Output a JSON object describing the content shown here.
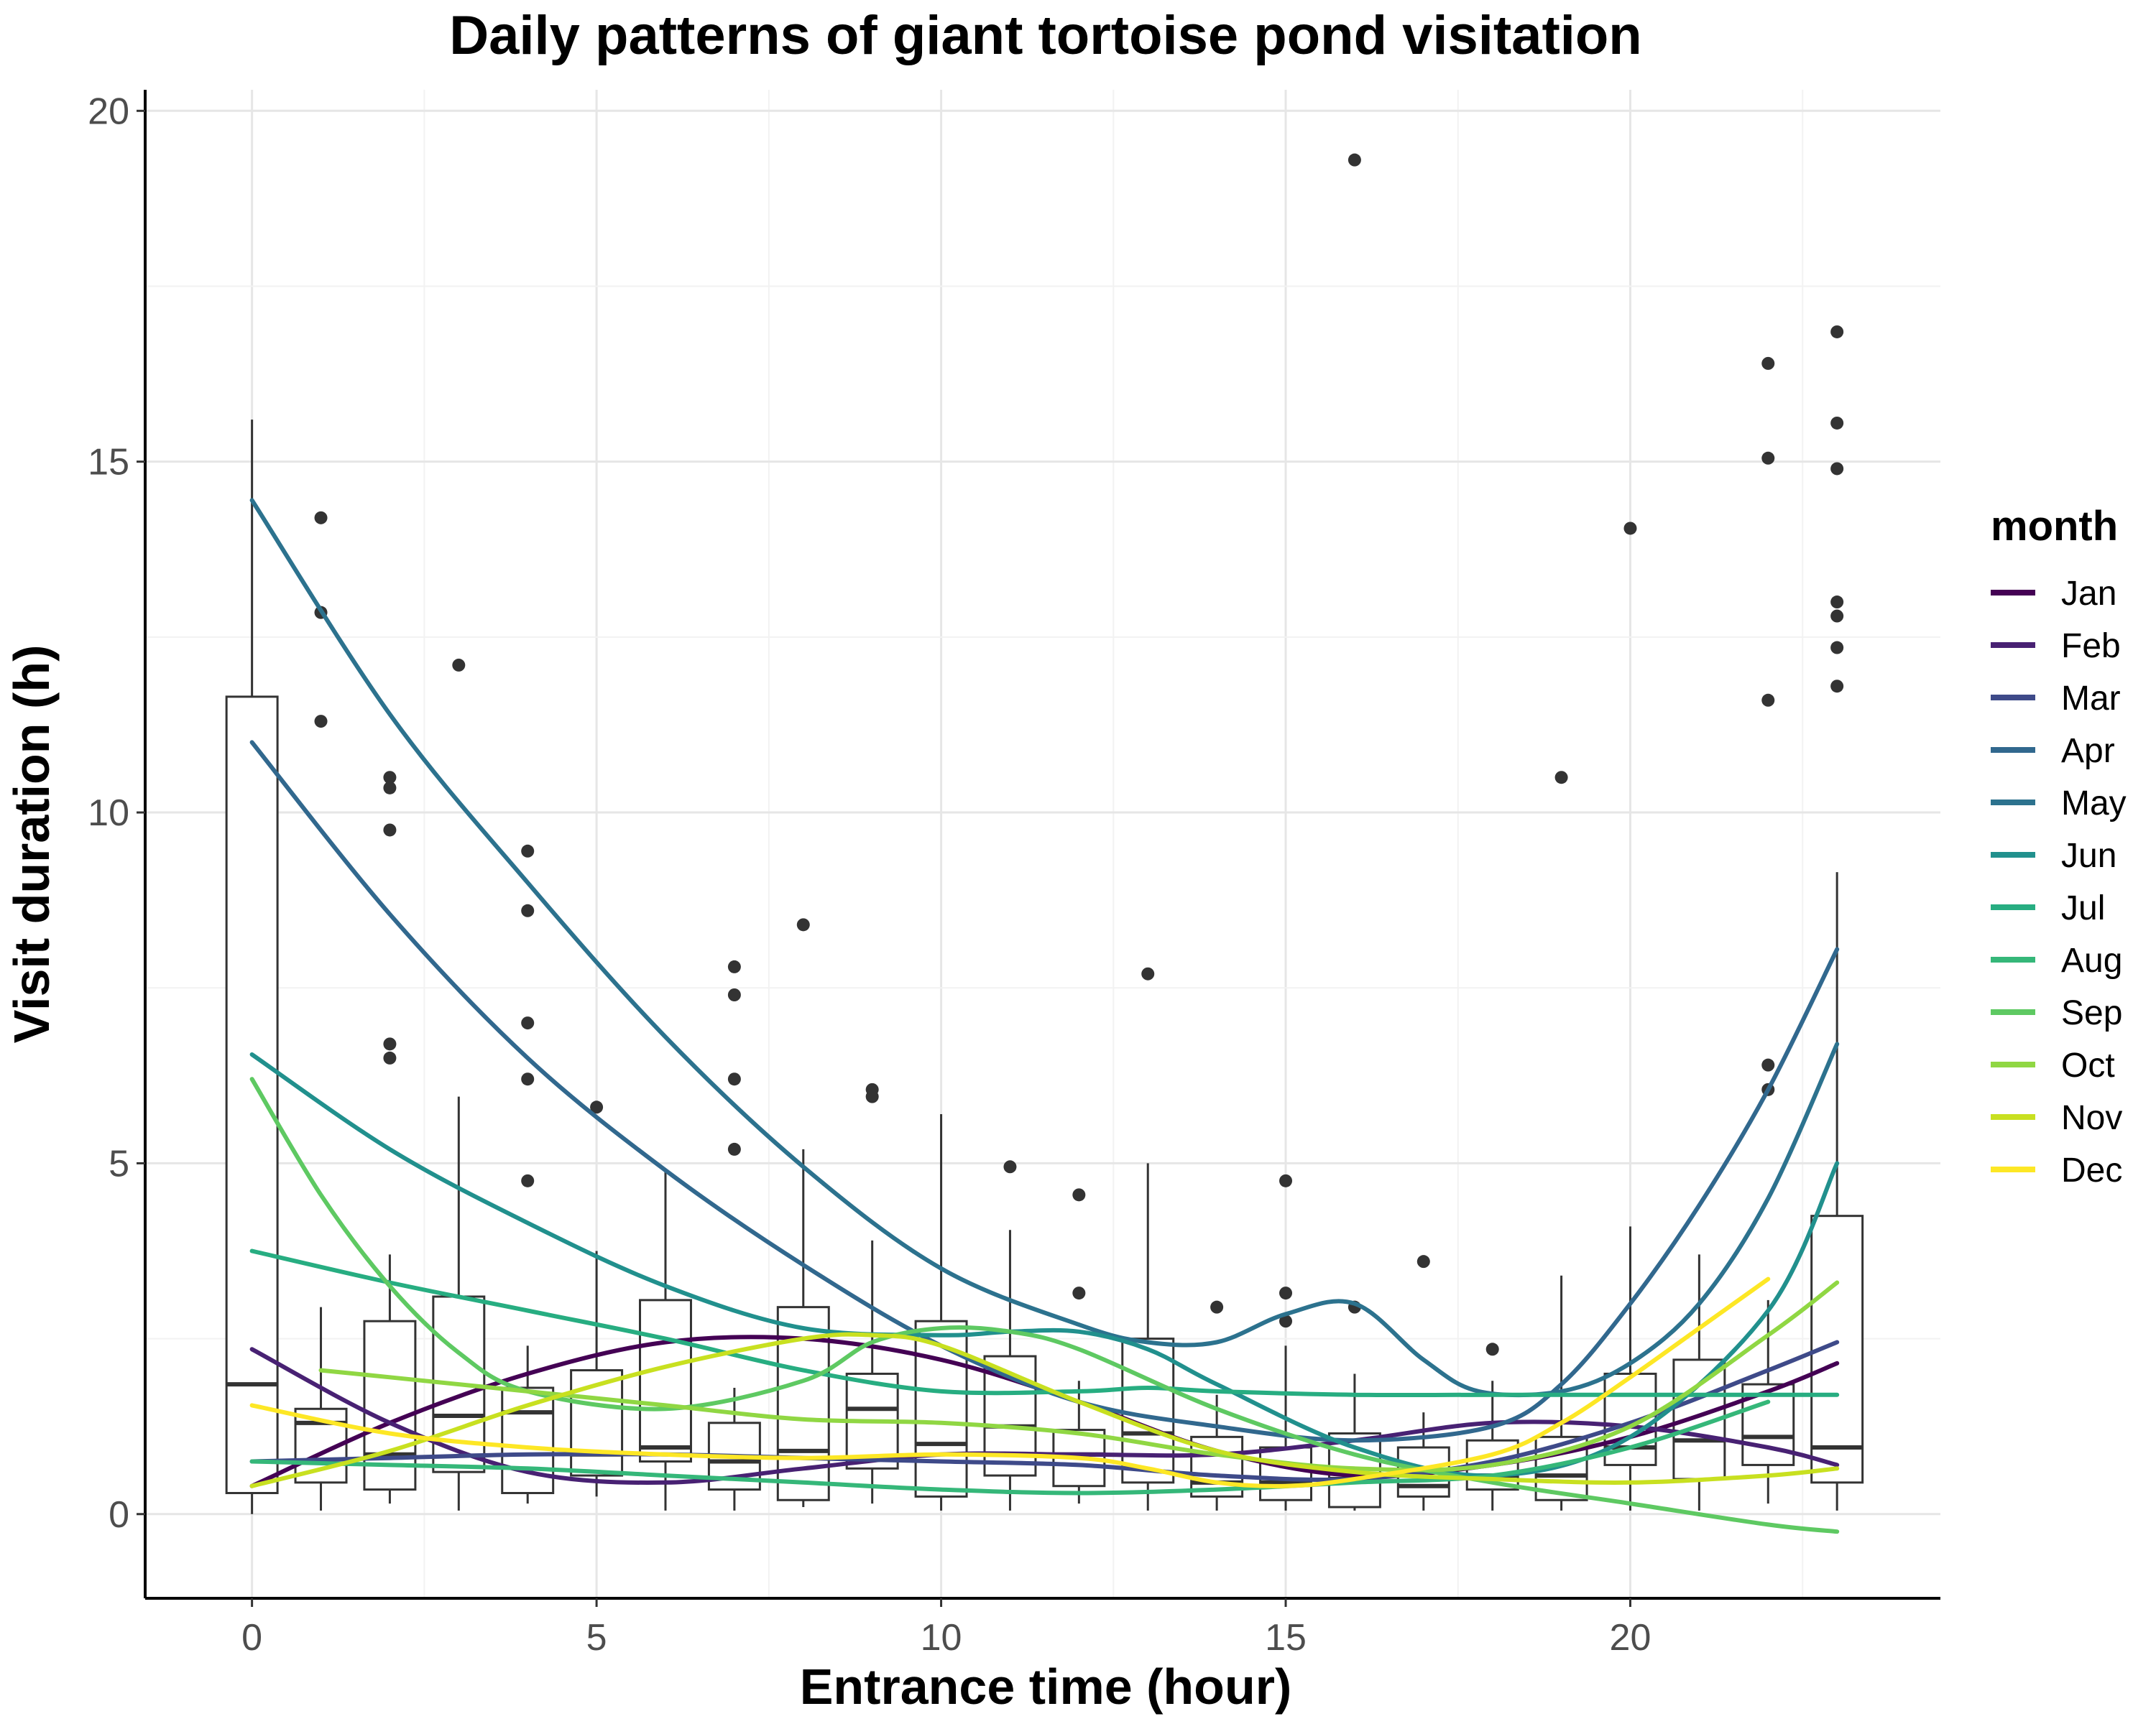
{
  "chart_data": {
    "type": "box",
    "title": "Daily patterns of giant tortoise pond visitation",
    "xlabel": "Entrance time (hour)",
    "ylabel": "Visit duration (h)",
    "xlim": [
      -1.55,
      24.5
    ],
    "ylim": [
      -1.2,
      20.3
    ],
    "x_ticks": [
      0,
      5,
      10,
      15,
      20
    ],
    "y_ticks": [
      0,
      5,
      10,
      15,
      20
    ],
    "grid": true,
    "legend": {
      "title": "month",
      "position": "right"
    },
    "boxes": [
      {
        "x": 0,
        "lower": 0.0,
        "q1": 0.3,
        "median": 1.85,
        "q3": 11.65,
        "upper": 15.6
      },
      {
        "x": 1,
        "lower": 0.05,
        "q1": 0.45,
        "median": 1.3,
        "q3": 1.5,
        "upper": 2.95
      },
      {
        "x": 2,
        "lower": 0.15,
        "q1": 0.35,
        "median": 0.85,
        "q3": 2.75,
        "upper": 3.7
      },
      {
        "x": 3,
        "lower": 0.05,
        "q1": 0.6,
        "median": 1.4,
        "q3": 3.1,
        "upper": 5.95
      },
      {
        "x": 4,
        "lower": 0.15,
        "q1": 0.3,
        "median": 1.45,
        "q3": 1.8,
        "upper": 2.4
      },
      {
        "x": 5,
        "lower": 0.25,
        "q1": 0.55,
        "median": 0.85,
        "q3": 2.05,
        "upper": 3.75
      },
      {
        "x": 6,
        "lower": 0.05,
        "q1": 0.75,
        "median": 0.95,
        "q3": 3.05,
        "upper": 4.9
      },
      {
        "x": 7,
        "lower": 0.05,
        "q1": 0.35,
        "median": 0.75,
        "q3": 1.3,
        "upper": 1.8
      },
      {
        "x": 8,
        "lower": 0.1,
        "q1": 0.2,
        "median": 0.9,
        "q3": 2.95,
        "upper": 5.2
      },
      {
        "x": 9,
        "lower": 0.15,
        "q1": 0.65,
        "median": 1.5,
        "q3": 2.0,
        "upper": 3.9
      },
      {
        "x": 10,
        "lower": 0.05,
        "q1": 0.25,
        "median": 1.0,
        "q3": 2.75,
        "upper": 5.7
      },
      {
        "x": 11,
        "lower": 0.05,
        "q1": 0.55,
        "median": 1.25,
        "q3": 2.25,
        "upper": 4.05
      },
      {
        "x": 12,
        "lower": 0.15,
        "q1": 0.4,
        "median": 0.85,
        "q3": 1.2,
        "upper": 1.9
      },
      {
        "x": 13,
        "lower": 0.05,
        "q1": 0.45,
        "median": 1.15,
        "q3": 2.5,
        "upper": 5.0
      },
      {
        "x": 14,
        "lower": 0.05,
        "q1": 0.25,
        "median": 0.45,
        "q3": 1.1,
        "upper": 1.7
      },
      {
        "x": 15,
        "lower": 0.05,
        "q1": 0.2,
        "median": 0.45,
        "q3": 0.95,
        "upper": 2.4
      },
      {
        "x": 16,
        "lower": 0.05,
        "q1": 0.1,
        "median": 0.5,
        "q3": 1.15,
        "upper": 2.0
      },
      {
        "x": 17,
        "lower": 0.05,
        "q1": 0.25,
        "median": 0.4,
        "q3": 0.95,
        "upper": 1.45
      },
      {
        "x": 18,
        "lower": 0.05,
        "q1": 0.35,
        "median": 0.55,
        "q3": 1.05,
        "upper": 1.9
      },
      {
        "x": 19,
        "lower": 0.05,
        "q1": 0.2,
        "median": 0.55,
        "q3": 1.1,
        "upper": 3.4
      },
      {
        "x": 20,
        "lower": 0.05,
        "q1": 0.7,
        "median": 0.95,
        "q3": 2.0,
        "upper": 4.1
      },
      {
        "x": 21,
        "lower": 0.05,
        "q1": 0.5,
        "median": 1.05,
        "q3": 2.2,
        "upper": 3.7
      },
      {
        "x": 22,
        "lower": 0.15,
        "q1": 0.7,
        "median": 1.1,
        "q3": 1.85,
        "upper": 3.05
      },
      {
        "x": 23,
        "lower": 0.05,
        "q1": 0.45,
        "median": 0.95,
        "q3": 4.25,
        "upper": 9.15
      }
    ],
    "outliers": [
      [
        1,
        14.2
      ],
      [
        1,
        12.85
      ],
      [
        1,
        11.3
      ],
      [
        2,
        10.5
      ],
      [
        2,
        10.35
      ],
      [
        2,
        9.75
      ],
      [
        2,
        6.7
      ],
      [
        2,
        6.5
      ],
      [
        3,
        12.1
      ],
      [
        4,
        9.45
      ],
      [
        4,
        8.6
      ],
      [
        4,
        7.0
      ],
      [
        4,
        6.2
      ],
      [
        4,
        4.75
      ],
      [
        5,
        5.8
      ],
      [
        7,
        7.8
      ],
      [
        7,
        7.4
      ],
      [
        7,
        6.2
      ],
      [
        7,
        5.2
      ],
      [
        8,
        8.4
      ],
      [
        9,
        6.05
      ],
      [
        9,
        5.95
      ],
      [
        11,
        4.95
      ],
      [
        12,
        4.55
      ],
      [
        12,
        3.15
      ],
      [
        13,
        7.7
      ],
      [
        14,
        2.95
      ],
      [
        15,
        4.75
      ],
      [
        15,
        3.15
      ],
      [
        15,
        2.75
      ],
      [
        16,
        19.3
      ],
      [
        16,
        2.95
      ],
      [
        17,
        3.6
      ],
      [
        18,
        2.35
      ],
      [
        19,
        10.5
      ],
      [
        20,
        14.05
      ],
      [
        22,
        16.4
      ],
      [
        22,
        15.05
      ],
      [
        22,
        11.6
      ],
      [
        22,
        6.4
      ],
      [
        22,
        6.05
      ],
      [
        23,
        16.85
      ],
      [
        23,
        15.55
      ],
      [
        23,
        14.9
      ],
      [
        23,
        13.0
      ],
      [
        23,
        12.8
      ],
      [
        23,
        12.35
      ],
      [
        23,
        11.8
      ]
    ],
    "series": [
      {
        "name": "Jan",
        "color": "#440154",
        "x": [
          0,
          2,
          4,
          6,
          8,
          10,
          12,
          14,
          16,
          18,
          20,
          22,
          23
        ],
        "y": [
          0.4,
          1.3,
          2.0,
          2.45,
          2.5,
          2.2,
          1.6,
          0.9,
          0.55,
          0.7,
          1.1,
          1.75,
          2.15
        ]
      },
      {
        "name": "Feb",
        "color": "#482173",
        "x": [
          0,
          2,
          4,
          6,
          8,
          10,
          12,
          14,
          16,
          18,
          20,
          22,
          23
        ],
        "y": [
          2.35,
          1.3,
          0.6,
          0.45,
          0.65,
          0.85,
          0.85,
          0.85,
          1.05,
          1.3,
          1.25,
          0.95,
          0.7
        ]
      },
      {
        "name": "Mar",
        "color": "#3e4a89",
        "x": [
          0,
          2,
          4,
          6,
          8,
          10,
          12,
          14,
          16,
          18,
          20,
          22,
          23
        ],
        "y": [
          0.75,
          0.8,
          0.85,
          0.85,
          0.8,
          0.75,
          0.7,
          0.55,
          0.5,
          0.75,
          1.3,
          2.05,
          2.45
        ]
      },
      {
        "name": "Apr",
        "color": "#31688e",
        "x": [
          0,
          2,
          4,
          6,
          8,
          10,
          12,
          14,
          16,
          18,
          19,
          20,
          21,
          22,
          23
        ],
        "y": [
          11.0,
          8.55,
          6.5,
          4.9,
          3.55,
          2.4,
          1.6,
          1.25,
          1.05,
          1.25,
          1.85,
          3.0,
          4.4,
          6.05,
          8.05
        ]
      },
      {
        "name": "May",
        "color": "#2c728e",
        "x": [
          0,
          2,
          4,
          6,
          8,
          10,
          12,
          13,
          14,
          15,
          16,
          17,
          17.8,
          19,
          20,
          21,
          22,
          23
        ],
        "y": [
          14.45,
          11.4,
          9.0,
          6.8,
          4.95,
          3.5,
          2.7,
          2.45,
          2.45,
          2.85,
          3.0,
          2.2,
          1.75,
          1.75,
          2.15,
          3.0,
          4.5,
          6.7
        ]
      },
      {
        "name": "Jun",
        "color": "#21908d",
        "x": [
          0,
          2,
          4,
          6,
          8,
          10,
          11,
          12,
          13,
          14,
          16,
          18,
          20,
          22,
          23
        ],
        "y": [
          6.55,
          5.2,
          4.15,
          3.25,
          2.65,
          2.55,
          2.6,
          2.6,
          2.35,
          1.85,
          0.95,
          0.55,
          1.1,
          2.9,
          5.0
        ]
      },
      {
        "name": "Jul",
        "color": "#27ad81",
        "x": [
          0,
          2,
          4,
          6,
          8,
          10,
          12,
          13,
          14,
          16,
          18,
          20,
          22,
          23
        ],
        "y": [
          3.75,
          3.3,
          2.9,
          2.5,
          2.05,
          1.75,
          1.75,
          1.8,
          1.75,
          1.7,
          1.7,
          1.7,
          1.7,
          1.7
        ]
      },
      {
        "name": "Aug",
        "color": "#35b779",
        "x": [
          0,
          2,
          4,
          6,
          8,
          10,
          12,
          14,
          16,
          18,
          20,
          22
        ],
        "y": [
          0.75,
          0.7,
          0.65,
          0.55,
          0.45,
          0.35,
          0.3,
          0.35,
          0.45,
          0.55,
          0.95,
          1.6
        ]
      },
      {
        "name": "Sep",
        "color": "#5ec962",
        "x": [
          0,
          1,
          2,
          3,
          4,
          6,
          8,
          9,
          10,
          11,
          12,
          14,
          16,
          18,
          20,
          22,
          23
        ],
        "y": [
          6.2,
          4.55,
          3.25,
          2.3,
          1.75,
          1.5,
          1.9,
          2.45,
          2.65,
          2.6,
          2.35,
          1.5,
          0.85,
          0.45,
          0.15,
          -0.15,
          -0.25
        ]
      },
      {
        "name": "Oct",
        "color": "#90d743",
        "x": [
          1,
          2,
          4,
          6,
          8,
          10,
          12,
          14,
          16,
          18,
          20,
          22,
          23
        ],
        "y": [
          2.05,
          1.95,
          1.75,
          1.55,
          1.35,
          1.3,
          1.15,
          0.85,
          0.65,
          0.7,
          1.25,
          2.55,
          3.3
        ]
      },
      {
        "name": "Nov",
        "color": "#c8e020",
        "x": [
          0,
          2,
          4,
          6,
          8,
          9,
          10,
          12,
          14,
          16,
          18,
          20,
          22,
          23
        ],
        "y": [
          0.4,
          0.9,
          1.55,
          2.1,
          2.5,
          2.55,
          2.4,
          1.6,
          0.9,
          0.6,
          0.5,
          0.45,
          0.55,
          0.65
        ]
      },
      {
        "name": "Dec",
        "color": "#fde725",
        "x": [
          0,
          2,
          4,
          6,
          8,
          10,
          12,
          13,
          14,
          15,
          16,
          18,
          19,
          20,
          21,
          22
        ],
        "y": [
          1.55,
          1.15,
          0.95,
          0.85,
          0.8,
          0.85,
          0.8,
          0.65,
          0.45,
          0.4,
          0.5,
          0.85,
          1.3,
          1.95,
          2.65,
          3.35
        ]
      }
    ]
  }
}
